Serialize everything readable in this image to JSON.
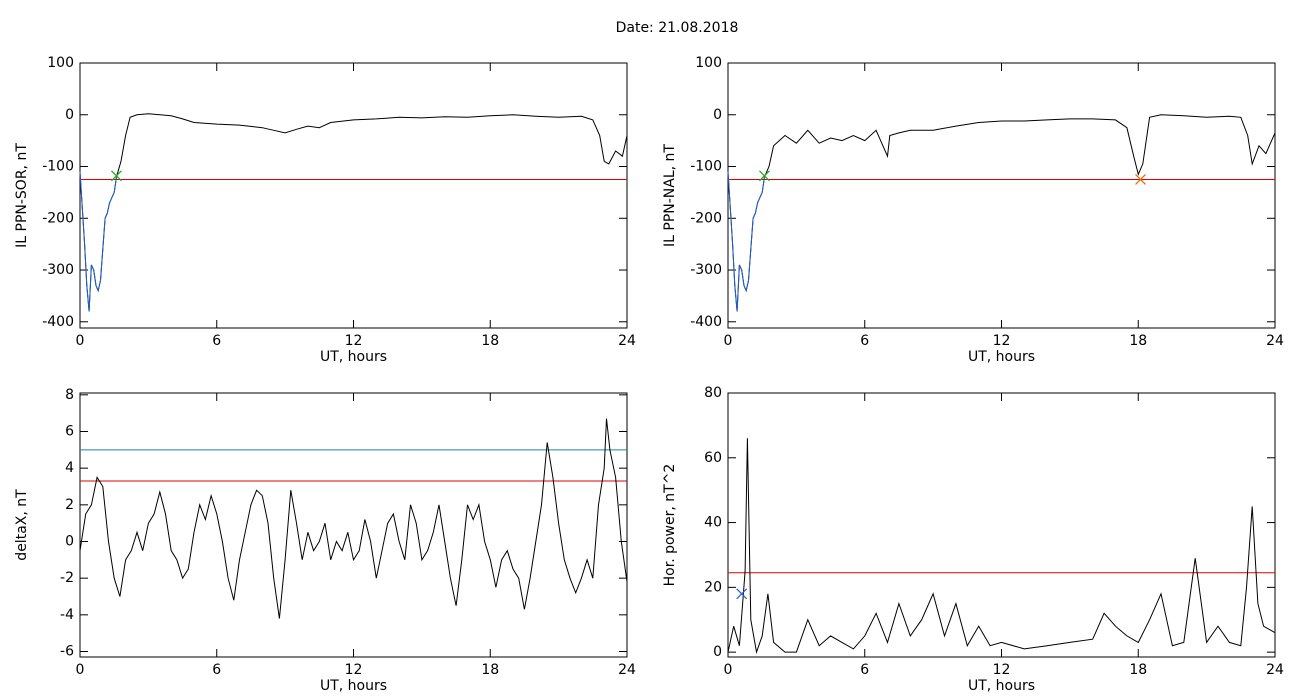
{
  "title": "Date:  21.08.2018",
  "chart_data": [
    {
      "type": "line",
      "xlabel": "UT, hours",
      "ylabel": "IL PPN-SOR, nT",
      "xlim": [
        0,
        24
      ],
      "xticks": [
        0,
        6,
        12,
        18,
        24
      ],
      "ylim": [
        -412,
        100
      ],
      "yticks": [
        -400,
        -300,
        -200,
        -100,
        0,
        100
      ],
      "x": [
        0,
        0.2,
        0.3,
        0.4,
        0.5,
        0.6,
        0.7,
        0.8,
        0.9,
        1.0,
        1.1,
        1.2,
        1.3,
        1.5,
        1.6,
        1.8,
        2.0,
        2.2,
        2.5,
        3,
        3.5,
        4,
        4.5,
        5,
        6,
        7,
        8,
        8.5,
        9,
        9.5,
        10,
        10.5,
        11,
        12,
        13,
        14,
        15,
        16,
        17,
        18,
        19,
        20,
        21,
        22,
        22.5,
        22.8,
        23,
        23.2,
        23.5,
        23.8,
        24
      ],
      "series": [
        {
          "color": "#000000",
          "values": [
            -110,
            -250,
            -330,
            -380,
            -290,
            -300,
            -330,
            -340,
            -320,
            -260,
            -200,
            -190,
            -170,
            -150,
            -120,
            -90,
            -40,
            -5,
            0,
            2,
            0,
            -2,
            -8,
            -15,
            -18,
            -20,
            -25,
            -30,
            -35,
            -28,
            -22,
            -25,
            -15,
            -10,
            -8,
            -5,
            -6,
            -4,
            -5,
            -2,
            0,
            -3,
            -5,
            -3,
            -10,
            -40,
            -90,
            -95,
            -70,
            -80,
            -40
          ]
        },
        {
          "color": "#1f5fd0",
          "x": [
            0,
            0.2,
            0.3,
            0.4,
            0.5,
            0.6,
            0.7,
            0.8,
            0.9,
            1.0,
            1.1,
            1.2,
            1.3,
            1.5,
            1.6
          ],
          "values": [
            -110,
            -250,
            -330,
            -380,
            -290,
            -300,
            -330,
            -340,
            -320,
            -260,
            -200,
            -190,
            -170,
            -150,
            -120
          ]
        }
      ],
      "hlines": [
        {
          "value": -125,
          "color": "#e00000"
        }
      ],
      "markers": [
        {
          "x": 1.6,
          "y": -118,
          "color": "#22aa22"
        }
      ]
    },
    {
      "type": "line",
      "xlabel": "UT, hours",
      "ylabel": "IL PPN-NAL, nT",
      "xlim": [
        0,
        24
      ],
      "xticks": [
        0,
        6,
        12,
        18,
        24
      ],
      "ylim": [
        -412,
        100
      ],
      "yticks": [
        -400,
        -300,
        -200,
        -100,
        0,
        100
      ],
      "x": [
        0,
        0.2,
        0.3,
        0.4,
        0.5,
        0.6,
        0.7,
        0.8,
        0.9,
        1.0,
        1.1,
        1.2,
        1.3,
        1.5,
        1.6,
        1.8,
        2,
        2.5,
        3,
        3.5,
        4,
        4.5,
        5,
        5.5,
        6,
        6.5,
        7,
        7.1,
        7.5,
        8,
        9,
        10,
        11,
        12,
        13,
        14,
        15,
        16,
        17,
        17.5,
        17.8,
        18,
        18.2,
        18.5,
        19,
        20,
        21,
        22,
        22.5,
        22.8,
        23,
        23.3,
        23.6,
        24
      ],
      "series": [
        {
          "color": "#000000",
          "values": [
            -110,
            -250,
            -330,
            -380,
            -290,
            -300,
            -330,
            -340,
            -320,
            -260,
            -200,
            -190,
            -170,
            -150,
            -120,
            -100,
            -60,
            -40,
            -55,
            -30,
            -55,
            -45,
            -50,
            -40,
            -50,
            -30,
            -80,
            -40,
            -35,
            -30,
            -30,
            -22,
            -15,
            -12,
            -12,
            -10,
            -8,
            -8,
            -10,
            -25,
            -80,
            -115,
            -95,
            -5,
            0,
            -2,
            -5,
            -3,
            -5,
            -40,
            -95,
            -60,
            -75,
            -35
          ]
        },
        {
          "color": "#1f5fd0",
          "x": [
            0,
            0.2,
            0.3,
            0.4,
            0.5,
            0.6,
            0.7,
            0.8,
            0.9,
            1.0,
            1.1,
            1.2,
            1.3,
            1.5,
            1.6
          ],
          "values": [
            -110,
            -250,
            -330,
            -380,
            -290,
            -300,
            -330,
            -340,
            -320,
            -260,
            -200,
            -190,
            -170,
            -150,
            -120
          ]
        }
      ],
      "hlines": [
        {
          "value": -125,
          "color": "#e00000"
        }
      ],
      "markers": [
        {
          "x": 1.6,
          "y": -118,
          "color": "#22aa22"
        },
        {
          "x": 18.1,
          "y": -125,
          "color": "#e07000"
        }
      ]
    },
    {
      "type": "line",
      "xlabel": "UT, hours",
      "ylabel": "deltaX, nT",
      "xlim": [
        0,
        24
      ],
      "xticks": [
        0,
        6,
        12,
        18,
        24
      ],
      "ylim": [
        -6.3,
        8.1
      ],
      "yticks": [
        -6,
        -4,
        -2,
        0,
        2,
        4,
        6,
        8
      ],
      "x": [
        0,
        0.25,
        0.5,
        0.75,
        1,
        1.25,
        1.5,
        1.75,
        2,
        2.25,
        2.5,
        2.75,
        3,
        3.25,
        3.5,
        3.75,
        4,
        4.25,
        4.5,
        4.75,
        5,
        5.25,
        5.5,
        5.75,
        6,
        6.25,
        6.5,
        6.75,
        7,
        7.25,
        7.5,
        7.75,
        8,
        8.25,
        8.5,
        8.75,
        9,
        9.25,
        9.5,
        9.75,
        10,
        10.25,
        10.5,
        10.75,
        11,
        11.25,
        11.5,
        11.75,
        12,
        12.25,
        12.5,
        12.75,
        13,
        13.25,
        13.5,
        13.75,
        14,
        14.25,
        14.5,
        14.75,
        15,
        15.25,
        15.5,
        15.75,
        16,
        16.25,
        16.5,
        16.75,
        17,
        17.25,
        17.5,
        17.75,
        18,
        18.25,
        18.5,
        18.75,
        19,
        19.25,
        19.5,
        19.75,
        20,
        20.25,
        20.5,
        20.75,
        21,
        21.25,
        21.5,
        21.75,
        22,
        22.25,
        22.5,
        22.75,
        23,
        23.1,
        23.25,
        23.5,
        23.75,
        24
      ],
      "series": [
        {
          "color": "#000000",
          "values": [
            -0.5,
            1.5,
            2,
            3.5,
            3,
            0,
            -2,
            -3,
            -1,
            -0.5,
            0.5,
            -0.5,
            1,
            1.5,
            2.7,
            1.5,
            -0.5,
            -1,
            -2,
            -1.5,
            0.5,
            2,
            1.2,
            2.5,
            1.5,
            0,
            -2,
            -3.2,
            -1,
            0.5,
            2,
            2.8,
            2.5,
            1,
            -2,
            -4.2,
            -1,
            2.8,
            1,
            -1,
            0.5,
            -0.5,
            0,
            1,
            -1,
            0,
            -0.5,
            0.5,
            -1,
            -0.5,
            1.2,
            0,
            -2,
            -0.5,
            1,
            1.5,
            0,
            -1,
            2,
            1,
            -1,
            -0.5,
            0.5,
            2,
            0,
            -2,
            -3.5,
            -1,
            2,
            1.2,
            2,
            0,
            -1,
            -2.5,
            -1,
            -0.5,
            -1.5,
            -2,
            -3.7,
            -2,
            0,
            2,
            5.4,
            3.5,
            1,
            -1,
            -2,
            -2.8,
            -2,
            -1,
            -2,
            2,
            4,
            6.7,
            5,
            3.5,
            0,
            -2.2
          ]
        }
      ],
      "hlines": [
        {
          "value": 5.0,
          "color": "#1a8a9a"
        },
        {
          "value": 3.3,
          "color": "#e00000"
        }
      ],
      "markers": []
    },
    {
      "type": "line",
      "xlabel": "UT, hours",
      "ylabel": "Hor. power, nT^2",
      "xlim": [
        0,
        24
      ],
      "xticks": [
        0,
        6,
        12,
        18,
        24
      ],
      "ylim": [
        -1.5,
        80
      ],
      "yticks": [
        0,
        20,
        40,
        60,
        80
      ],
      "x": [
        0,
        0.25,
        0.5,
        0.75,
        0.85,
        1,
        1.25,
        1.5,
        1.75,
        2,
        2.5,
        3,
        3.5,
        4,
        4.5,
        5,
        5.5,
        6,
        6.5,
        7,
        7.5,
        8,
        8.5,
        9,
        9.5,
        10,
        10.5,
        11,
        11.5,
        12,
        13,
        14,
        15,
        16,
        16.5,
        17,
        17.5,
        18,
        18.5,
        19,
        19.5,
        20,
        20.5,
        21,
        21.5,
        22,
        22.5,
        22.75,
        23,
        23.25,
        23.5,
        24
      ],
      "series": [
        {
          "color": "#000000",
          "values": [
            0,
            8,
            2,
            25,
            66,
            10,
            0,
            5,
            18,
            3,
            0,
            0,
            10,
            2,
            5,
            3,
            1,
            5,
            12,
            3,
            15,
            5,
            10,
            18,
            5,
            15,
            2,
            8,
            2,
            3,
            1,
            2,
            3,
            4,
            12,
            8,
            5,
            3,
            10,
            18,
            2,
            3,
            29,
            3,
            8,
            3,
            2,
            20,
            45,
            15,
            8,
            6
          ]
        }
      ],
      "hlines": [
        {
          "value": 24.5,
          "color": "#e00000"
        }
      ],
      "markers": [
        {
          "x": 0.6,
          "y": 18,
          "color": "#3060d0"
        }
      ]
    }
  ]
}
